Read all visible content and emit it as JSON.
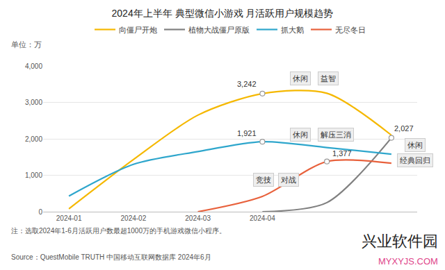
{
  "chart_data": {
    "type": "line",
    "title": "2024年上半年 典型微信小游戏 月活跃用户规模趋势",
    "unit_label": "单位：万",
    "note": "注：选取2024年1-6月活跃用户数最超1000万的手机游戏微信小程序。",
    "source": "Source：QuestMobile TRUTH 中国移动互联网数据库 2024年6月",
    "watermark": [
      "兴业软件园",
      "MYXYJS.COM"
    ],
    "categories": [
      "2024-01",
      "2024-02",
      "2024-03",
      "2024-04",
      null,
      null
    ],
    "series": [
      {
        "name": "向僵尸开炮",
        "color": "#f5b800",
        "values": [
          80,
          1430,
          2650,
          3242,
          3250,
          2100
        ],
        "value_labels": [
          null,
          null,
          null,
          "3,242",
          null,
          null
        ],
        "tags": [
          "休闲",
          "益智"
        ]
      },
      {
        "name": "植物大战僵尸原版",
        "color": "#808080",
        "values": [
          null,
          null,
          null,
          0,
          250,
          2027
        ],
        "value_labels": [
          null,
          null,
          null,
          null,
          null,
          "2,027"
        ],
        "tags": [
          "休闲",
          "经典回归"
        ]
      },
      {
        "name": "抓大鹅",
        "color": "#2ea6cc",
        "values": [
          430,
          1300,
          1650,
          1921,
          1760,
          1580
        ],
        "value_labels": [
          null,
          null,
          null,
          "1,921",
          null,
          null
        ],
        "tags": [
          "休闲",
          "解压三消"
        ]
      },
      {
        "name": "无尽冬日",
        "color": "#e8613c",
        "values": [
          null,
          null,
          0,
          420,
          1377,
          1330
        ],
        "value_labels": [
          null,
          null,
          null,
          null,
          "1,377",
          null
        ],
        "tags": [
          "竞技",
          "对战"
        ]
      }
    ],
    "ylim": [
      0,
      4000
    ],
    "yticks": [
      0,
      {
        "value": 1000,
        "label": "1,000"
      },
      {
        "value": 2000,
        "label": "2,000"
      },
      {
        "value": 3000,
        "label": "3,000"
      },
      {
        "value": 4000,
        "label": "4,000"
      }
    ],
    "grid": true,
    "legend": "top",
    "line_style": "smooth",
    "marker": "circle"
  }
}
